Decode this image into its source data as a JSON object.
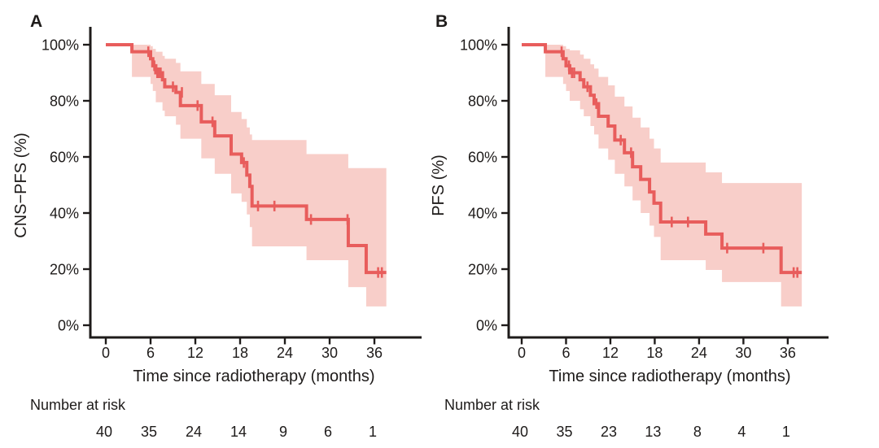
{
  "figure": {
    "background": "#ffffff",
    "accent_line_color": "#e85d5c",
    "band_color": "#f8cec9",
    "axis_color": "#1e1b1a"
  },
  "chart_data": [
    {
      "type": "line",
      "subtype": "kaplan-meier-step",
      "panel_label": "A",
      "ylabel": "CNS−PFS (%)",
      "xlabel": "Time since radiotherapy (months)",
      "xticks": [
        0,
        6,
        12,
        18,
        24,
        30,
        36
      ],
      "ytick_values": [
        100,
        80,
        60,
        40,
        20,
        0
      ],
      "ytick_labels": [
        "100%",
        "80%",
        "60%",
        "40%",
        "20%",
        "0%"
      ],
      "xlim": [
        0,
        42
      ],
      "ylim": [
        0,
        100
      ],
      "grid": false,
      "legend": "none",
      "number_at_risk_label": "Number at risk",
      "number_at_risk": [
        40,
        35,
        24,
        14,
        9,
        6,
        1
      ],
      "follow_up_end_month": 37.6,
      "survival_steps_pct": [
        [
          0,
          100
        ],
        [
          3.5,
          97.5
        ],
        [
          6.0,
          95
        ],
        [
          6.3,
          92.5
        ],
        [
          6.7,
          90
        ],
        [
          7.6,
          87.5
        ],
        [
          7.9,
          85
        ],
        [
          9.4,
          83
        ],
        [
          10.0,
          78.3
        ],
        [
          12.8,
          72.5
        ],
        [
          14.6,
          67.5
        ],
        [
          16.8,
          61
        ],
        [
          18.2,
          58
        ],
        [
          18.9,
          53.5
        ],
        [
          19.3,
          49.5
        ],
        [
          19.6,
          42.5
        ],
        [
          26.9,
          37.7
        ],
        [
          32.5,
          28.4
        ],
        [
          34.9,
          18.8
        ]
      ],
      "censor_marks_pct": [
        [
          5.7,
          97.5
        ],
        [
          6.5,
          92.5
        ],
        [
          6.9,
          90
        ],
        [
          7.1,
          90
        ],
        [
          7.35,
          90
        ],
        [
          9.0,
          85
        ],
        [
          10.2,
          83
        ],
        [
          12.3,
          78.3
        ],
        [
          14.3,
          72.5
        ],
        [
          18.5,
          58
        ],
        [
          20.4,
          42.5
        ],
        [
          22.6,
          42.5
        ],
        [
          27.5,
          37.7
        ],
        [
          32.4,
          37.7
        ],
        [
          36.5,
          18.8
        ],
        [
          37.0,
          18.8
        ]
      ],
      "confidence_band_pct": [
        [
          0,
          100,
          100
        ],
        [
          3.5,
          100,
          88.5
        ],
        [
          6.0,
          99.5,
          86
        ],
        [
          6.3,
          98.5,
          83.5
        ],
        [
          6.7,
          97.5,
          79.5
        ],
        [
          7.6,
          96,
          76.5
        ],
        [
          7.9,
          95,
          74.5
        ],
        [
          9.4,
          93.5,
          71.5
        ],
        [
          10.0,
          90.5,
          66.5
        ],
        [
          12.8,
          86,
          59.5
        ],
        [
          14.6,
          82,
          54
        ],
        [
          16.8,
          76,
          47
        ],
        [
          18.2,
          73.5,
          44
        ],
        [
          18.9,
          70.5,
          39.5
        ],
        [
          19.3,
          68,
          35
        ],
        [
          19.6,
          66,
          28.1
        ],
        [
          26.9,
          61,
          23.2
        ],
        [
          32.5,
          56,
          13.6
        ],
        [
          34.9,
          56,
          6.7
        ]
      ]
    },
    {
      "type": "line",
      "subtype": "kaplan-meier-step",
      "panel_label": "B",
      "ylabel": "PFS (%)",
      "xlabel": "Time since radiotherapy (months)",
      "xticks": [
        0,
        6,
        12,
        18,
        24,
        30,
        36
      ],
      "ytick_values": [
        100,
        80,
        60,
        40,
        20,
        0
      ],
      "ytick_labels": [
        "100%",
        "80%",
        "60%",
        "40%",
        "20%",
        "0%"
      ],
      "xlim": [
        0,
        42
      ],
      "ylim": [
        0,
        100
      ],
      "grid": false,
      "legend": "none",
      "number_at_risk_label": "Number at risk",
      "number_at_risk": [
        40,
        35,
        23,
        13,
        8,
        4,
        1
      ],
      "follow_up_end_month": 37.9,
      "survival_steps_pct": [
        [
          0,
          100
        ],
        [
          3.2,
          97.5
        ],
        [
          5.6,
          95
        ],
        [
          6.0,
          92.5
        ],
        [
          6.5,
          90
        ],
        [
          7.9,
          87.5
        ],
        [
          8.4,
          85
        ],
        [
          9.3,
          82
        ],
        [
          9.8,
          79
        ],
        [
          10.4,
          74.5
        ],
        [
          11.7,
          71
        ],
        [
          12.6,
          66
        ],
        [
          13.9,
          61.5
        ],
        [
          15.0,
          56.5
        ],
        [
          16.1,
          52
        ],
        [
          17.3,
          47.5
        ],
        [
          17.9,
          43.5
        ],
        [
          18.8,
          36.8
        ],
        [
          24.9,
          32.5
        ],
        [
          27.1,
          27.5
        ],
        [
          35.1,
          18.8
        ]
      ],
      "censor_marks_pct": [
        [
          5.4,
          97.5
        ],
        [
          6.4,
          92.5
        ],
        [
          6.8,
          90
        ],
        [
          7.1,
          90
        ],
        [
          8.9,
          85
        ],
        [
          10.1,
          79
        ],
        [
          13.4,
          66
        ],
        [
          14.8,
          61.5
        ],
        [
          20.3,
          36.8
        ],
        [
          22.5,
          36.8
        ],
        [
          27.8,
          27.5
        ],
        [
          32.7,
          27.5
        ],
        [
          36.8,
          18.8
        ],
        [
          37.3,
          18.8
        ]
      ],
      "confidence_band_pct": [
        [
          0,
          100,
          100
        ],
        [
          3.2,
          100,
          88.5
        ],
        [
          5.6,
          99.5,
          86
        ],
        [
          6.0,
          98.5,
          83.5
        ],
        [
          6.5,
          98,
          80
        ],
        [
          7.9,
          96.5,
          77
        ],
        [
          8.4,
          95,
          74.5
        ],
        [
          9.3,
          93,
          71
        ],
        [
          9.8,
          91.5,
          68
        ],
        [
          10.4,
          88.5,
          63
        ],
        [
          11.7,
          85.5,
          59
        ],
        [
          12.6,
          81.5,
          54
        ],
        [
          13.9,
          78,
          49.5
        ],
        [
          15.0,
          74,
          44.5
        ],
        [
          16.1,
          70.5,
          40
        ],
        [
          17.3,
          66.5,
          35.5
        ],
        [
          17.9,
          63,
          31.5
        ],
        [
          18.8,
          58,
          23.2
        ],
        [
          24.9,
          54.5,
          19.7
        ],
        [
          27.1,
          50.7,
          15.4
        ],
        [
          35.1,
          50.7,
          6.7
        ]
      ]
    }
  ]
}
